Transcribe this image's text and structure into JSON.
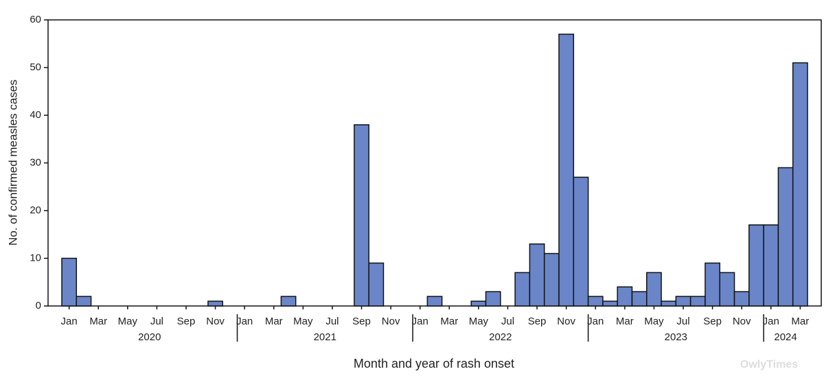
{
  "chart_data": {
    "type": "bar",
    "y_label": "No. of confirmed measles cases",
    "x_label": "Month and year of rash onset",
    "watermark": "OwlyTimes",
    "categories": [
      "Jan",
      null,
      "Mar",
      null,
      "May",
      null,
      "Jul",
      null,
      "Sep",
      null,
      "Nov",
      null,
      "Jan",
      null,
      "Mar",
      null,
      "May",
      null,
      "Jul",
      null,
      "Sep",
      null,
      "Nov",
      null,
      "Jan",
      null,
      "Mar",
      null,
      "May",
      null,
      "Jul",
      null,
      "Sep",
      null,
      "Nov",
      null,
      "Jan",
      null,
      "Mar",
      null,
      "May",
      null,
      "Jul",
      null,
      "Sep",
      null,
      "Nov",
      null,
      "Jan",
      null,
      "Mar"
    ],
    "category_years": [
      "2020",
      "2020",
      "2020",
      "2020",
      "2020",
      "2020",
      "2020",
      "2020",
      "2020",
      "2020",
      "2020",
      "2020",
      "2021",
      "2021",
      "2021",
      "2021",
      "2021",
      "2021",
      "2021",
      "2021",
      "2021",
      "2021",
      "2021",
      "2021",
      "2022",
      "2022",
      "2022",
      "2022",
      "2022",
      "2022",
      "2022",
      "2022",
      "2022",
      "2022",
      "2022",
      "2022",
      "2023",
      "2023",
      "2023",
      "2023",
      "2023",
      "2023",
      "2023",
      "2023",
      "2023",
      "2023",
      "2023",
      "2023",
      "2024",
      "2024",
      "2024"
    ],
    "values": [
      10,
      2,
      0,
      0,
      0,
      0,
      0,
      0,
      0,
      0,
      1,
      0,
      0,
      0,
      0,
      2,
      0,
      0,
      0,
      0,
      38,
      9,
      0,
      0,
      0,
      2,
      0,
      0,
      1,
      3,
      0,
      7,
      13,
      11,
      57,
      27,
      2,
      1,
      4,
      3,
      7,
      1,
      2,
      2,
      9,
      7,
      3,
      17,
      17,
      29,
      51
    ],
    "color": "#6a86c8",
    "ylim": [
      0,
      60
    ],
    "yticks": [
      0,
      10,
      20,
      30,
      40,
      50,
      60
    ]
  }
}
